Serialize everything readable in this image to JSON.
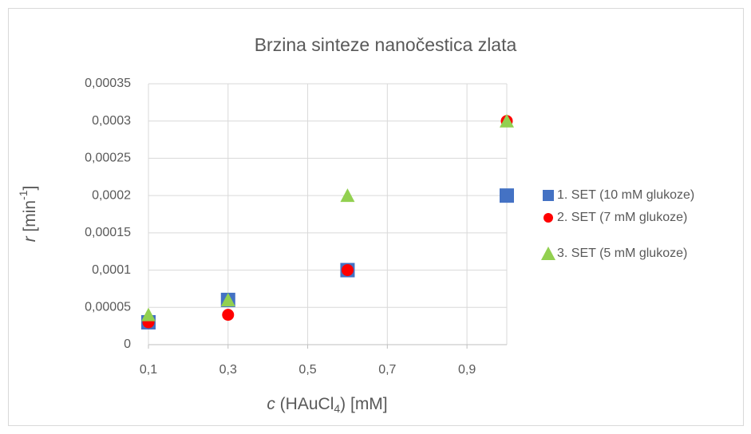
{
  "chart_data": {
    "type": "scatter",
    "title": "Brzina sinteze nanočestica zlata",
    "x_label": [
      "c",
      " (HAuCl",
      "4",
      ") [mM]"
    ],
    "y_label": [
      "r",
      " [min",
      "-1",
      "]"
    ],
    "x": [
      0.1,
      0.3,
      0.6,
      1.0
    ],
    "series": [
      {
        "name": "1. SET (10 mM glukoze)",
        "color": "#4472c4",
        "marker": "square",
        "values": [
          3e-05,
          6e-05,
          0.0001,
          0.0002
        ]
      },
      {
        "name": "2. SET (7 mM glukoze)",
        "color": "#ff0000",
        "marker": "circle",
        "values": [
          3e-05,
          4e-05,
          0.0001,
          0.0003
        ]
      },
      {
        "name": "3. SET (5 mM glukoze)",
        "color": "#92d050",
        "marker": "triangle",
        "values": [
          4e-05,
          6e-05,
          0.0002,
          0.0003
        ]
      }
    ],
    "xlim": [
      0.1,
      1.0
    ],
    "xticks": [
      {
        "value": 0.1,
        "label": "0,1"
      },
      {
        "value": 0.3,
        "label": "0,3"
      },
      {
        "value": 0.5,
        "label": "0,5"
      },
      {
        "value": 0.7,
        "label": "0,7"
      },
      {
        "value": 0.9,
        "label": "0,9"
      }
    ],
    "ylim": [
      0,
      0.00035
    ],
    "yticks": [
      0,
      {
        "value": 5e-05,
        "label": "0,00005"
      },
      {
        "value": 0.0001,
        "label": "0,0001"
      },
      {
        "value": 0.00015,
        "label": "0,00015"
      },
      {
        "value": 0.0002,
        "label": "0,0002"
      },
      {
        "value": 0.00025,
        "label": "0,00025"
      },
      {
        "value": 0.0003,
        "label": "0,0003"
      },
      {
        "value": 0.00035,
        "label": "0,00035"
      }
    ],
    "grid": true,
    "legend": "right"
  }
}
